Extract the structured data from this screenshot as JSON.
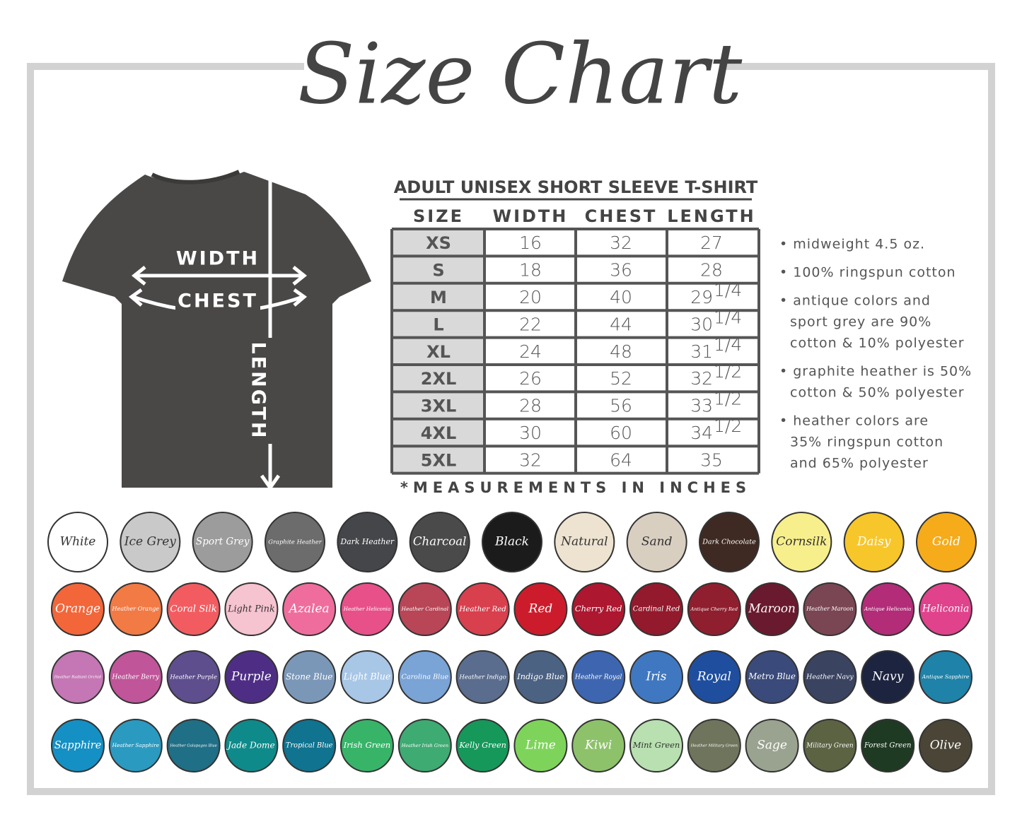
{
  "header": {
    "title": "Size Chart"
  },
  "shirt": {
    "labels": {
      "width": "WIDTH",
      "chest": "CHEST",
      "length": "LENGTH"
    }
  },
  "table": {
    "title": "ADULT UNISEX SHORT SLEEVE T-SHIRT",
    "columns": [
      "SIZE",
      "WIDTH",
      "CHEST",
      "LENGTH"
    ],
    "rows": [
      {
        "size": "XS",
        "width": "16",
        "chest": "32",
        "length": "27"
      },
      {
        "size": "S",
        "width": "18",
        "chest": "36",
        "length": "28"
      },
      {
        "size": "M",
        "width": "20",
        "chest": "40",
        "length": "29",
        "length_fraction": "1/4"
      },
      {
        "size": "L",
        "width": "22",
        "chest": "44",
        "length": "30",
        "length_fraction": "1/4"
      },
      {
        "size": "XL",
        "width": "24",
        "chest": "48",
        "length": "31",
        "length_fraction": "1/4"
      },
      {
        "size": "2XL",
        "width": "26",
        "chest": "52",
        "length": "32",
        "length_fraction": "1/2"
      },
      {
        "size": "3XL",
        "width": "28",
        "chest": "56",
        "length": "33",
        "length_fraction": "1/2"
      },
      {
        "size": "4XL",
        "width": "30",
        "chest": "60",
        "length": "34",
        "length_fraction": "1/2"
      },
      {
        "size": "5XL",
        "width": "32",
        "chest": "64",
        "length": "35"
      }
    ],
    "footnote": "*MEASUREMENTS IN INCHES"
  },
  "notes": [
    [
      "• midweight 4.5 oz."
    ],
    [
      "• 100% ringspun cotton"
    ],
    [
      "• antique colors and",
      "sport grey are 90%",
      "cotton & 10% polyester"
    ],
    [
      "• graphite heather is 50%",
      "cotton & 50% polyester"
    ],
    [
      "• heather colors are",
      "35% ringspun cotton",
      "and 65% polyester"
    ]
  ],
  "swatches": [
    [
      {
        "name": "White",
        "color": "#ffffff"
      },
      {
        "name": "Ice Grey",
        "color": "#c9c9c9"
      },
      {
        "name": "Sport Grey",
        "color": "#9c9c9c"
      },
      {
        "name": "Graphite Heather",
        "color": "#6c6c6c"
      },
      {
        "name": "Dark Heather",
        "color": "#44464a"
      },
      {
        "name": "Charcoal",
        "color": "#4a4a4a"
      },
      {
        "name": "Black",
        "color": "#1b1b1b"
      },
      {
        "name": "Natural",
        "color": "#ede3d0"
      },
      {
        "name": "Sand",
        "color": "#d9cfc1"
      },
      {
        "name": "Dark Chocolate",
        "color": "#3e2a22"
      },
      {
        "name": "Cornsilk",
        "color": "#f7ef8c"
      },
      {
        "name": "Daisy",
        "color": "#f7c62b"
      },
      {
        "name": "Gold",
        "color": "#f6ab1b"
      }
    ],
    [
      {
        "name": "Orange",
        "color": "#f2663a"
      },
      {
        "name": "Heather Orange",
        "color": "#f27a45"
      },
      {
        "name": "Coral Silk",
        "color": "#f25c60"
      },
      {
        "name": "Light Pink",
        "color": "#f6c3d0"
      },
      {
        "name": "Azalea",
        "color": "#ef6d9c"
      },
      {
        "name": "Heather Heliconia",
        "color": "#e8508a"
      },
      {
        "name": "Heather Cardinal",
        "color": "#b84657"
      },
      {
        "name": "Heather Red",
        "color": "#d8404e"
      },
      {
        "name": "Red",
        "color": "#cc1c2b"
      },
      {
        "name": "Cherry Red",
        "color": "#ad1730"
      },
      {
        "name": "Cardinal Red",
        "color": "#921a2c"
      },
      {
        "name": "Antique Cherry Red",
        "color": "#8f1f2e"
      },
      {
        "name": "Maroon",
        "color": "#6a1a2e"
      },
      {
        "name": "Heather Maroon",
        "color": "#7a4653"
      },
      {
        "name": "Antique Heliconia",
        "color": "#b22c78"
      },
      {
        "name": "Heliconia",
        "color": "#e0428c"
      }
    ],
    [
      {
        "name": "Heather Radiant Orchid",
        "color": "#c477b4"
      },
      {
        "name": "Heather Berry",
        "color": "#c0559a"
      },
      {
        "name": "Heather Purple",
        "color": "#5e4e8e"
      },
      {
        "name": "Purple",
        "color": "#4e2e85"
      },
      {
        "name": "Stone Blue",
        "color": "#7b97b8"
      },
      {
        "name": "Light Blue",
        "color": "#a8c6e6"
      },
      {
        "name": "Carolina Blue",
        "color": "#7aa3d6"
      },
      {
        "name": "Heather Indigo",
        "color": "#5b6d8e"
      },
      {
        "name": "Indigo Blue",
        "color": "#4c6283"
      },
      {
        "name": "Heather Royal",
        "color": "#3e66b0"
      },
      {
        "name": "Iris",
        "color": "#3f78c0"
      },
      {
        "name": "Royal",
        "color": "#1f4e9e"
      },
      {
        "name": "Metro Blue",
        "color": "#3a4a7a"
      },
      {
        "name": "Heather Navy",
        "color": "#3a4461"
      },
      {
        "name": "Navy",
        "color": "#1d2440"
      },
      {
        "name": "Antique Sapphire",
        "color": "#1f82a8"
      }
    ],
    [
      {
        "name": "Sapphire",
        "color": "#1590c4"
      },
      {
        "name": "Heather Sapphire",
        "color": "#2a9ac0"
      },
      {
        "name": "Heather Galapagos Blue",
        "color": "#1f6f86"
      },
      {
        "name": "Jade Dome",
        "color": "#0f8a8a"
      },
      {
        "name": "Tropical Blue",
        "color": "#10738f"
      },
      {
        "name": "Irish Green",
        "color": "#38b469"
      },
      {
        "name": "Heather Irish Green",
        "color": "#3eab72"
      },
      {
        "name": "Kelly Green",
        "color": "#16985a"
      },
      {
        "name": "Lime",
        "color": "#7ed45a"
      },
      {
        "name": "Kiwi",
        "color": "#8dc26a"
      },
      {
        "name": "Mint Green",
        "color": "#b8e0b0"
      },
      {
        "name": "Heather Military Green",
        "color": "#6f745c"
      },
      {
        "name": "Sage",
        "color": "#9aa38f"
      },
      {
        "name": "Military Green",
        "color": "#5b6343"
      },
      {
        "name": "Forest Green",
        "color": "#1f3a23"
      },
      {
        "name": "Olive",
        "color": "#4a4536"
      }
    ]
  ]
}
